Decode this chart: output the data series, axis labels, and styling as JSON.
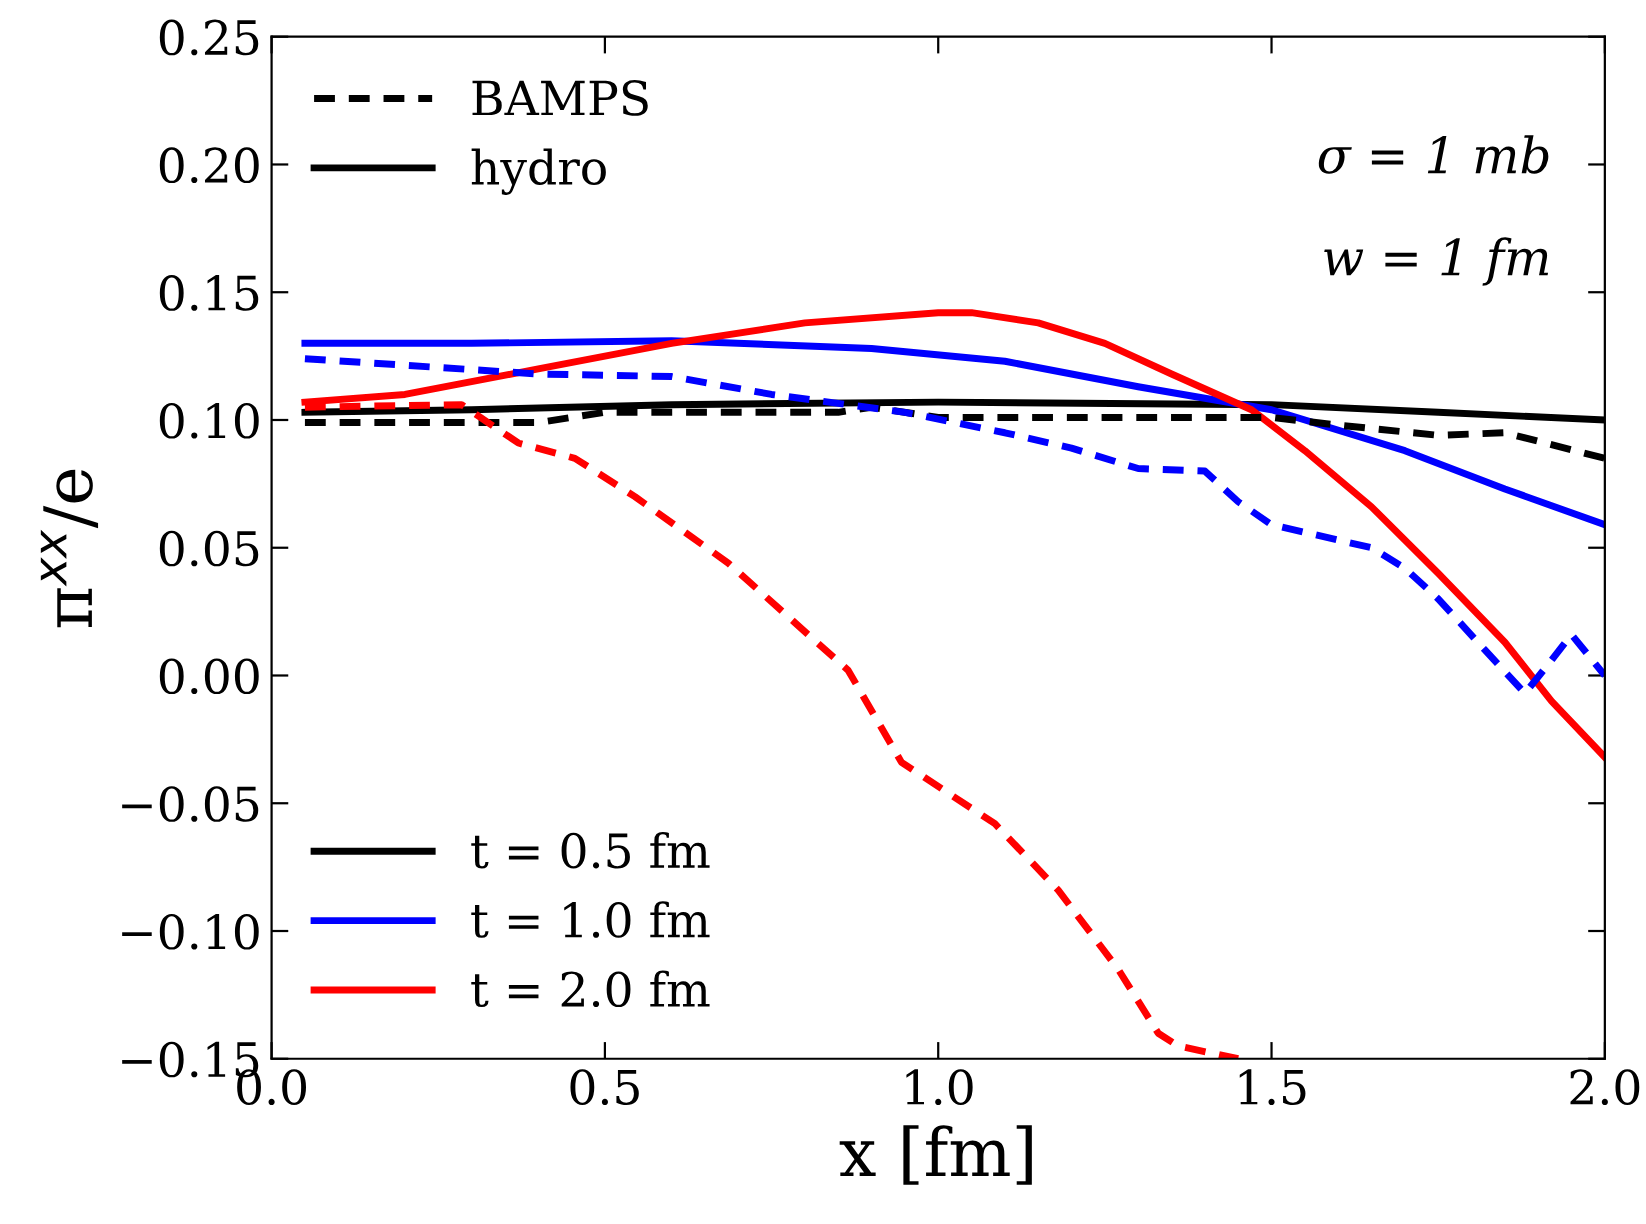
{
  "chart_data": {
    "type": "line",
    "xlabel": "x [fm]",
    "ylabel": "π$^{xx}$/e",
    "xlim": [
      0.0,
      2.0
    ],
    "xticks": [
      {
        "value": 0.0,
        "label": "0.0"
      },
      0.5,
      {
        "value": 1.0,
        "label": "1.0"
      },
      1.5,
      {
        "value": 2.0,
        "label": "2.0"
      }
    ],
    "ylim": [
      -0.15,
      0.25
    ],
    "yticks": [
      {
        "value": -0.15,
        "label": "−0.15"
      },
      {
        "value": -0.1,
        "label": "−0.10"
      },
      {
        "value": -0.05,
        "label": "−0.05"
      },
      {
        "value": 0.0,
        "label": "0.00"
      },
      0.05,
      {
        "value": 0.1,
        "label": "0.10"
      },
      0.15,
      {
        "value": 0.2,
        "label": "0.20"
      },
      0.25
    ],
    "grid": false,
    "legend": "bottom left",
    "marker": "none",
    "series": [
      {
        "name": "t = 0.5 fm",
        "color": "#000000",
        "line_style": "solid",
        "x": [
          0.05,
          0.3,
          0.6,
          1.0,
          1.5,
          1.75,
          2.0
        ],
        "values": [
          0.103,
          0.104,
          0.106,
          0.107,
          0.106,
          0.103,
          0.1
        ]
      },
      {
        "name": "t = 1.0 fm",
        "color": "#0000ff",
        "line_style": "solid",
        "x": [
          0.05,
          0.3,
          0.6,
          0.9,
          1.1,
          1.3,
          1.5,
          1.7,
          1.85,
          2.0
        ],
        "values": [
          0.13,
          0.13,
          0.131,
          0.128,
          0.123,
          0.113,
          0.104,
          0.088,
          0.073,
          0.059
        ]
      },
      {
        "name": "t = 2.0 fm",
        "color": "#ff0000",
        "line_style": "solid",
        "x": [
          0.05,
          0.2,
          0.4,
          0.6,
          0.8,
          1.0,
          1.05,
          1.15,
          1.25,
          1.35,
          1.47,
          1.55,
          1.65,
          1.75,
          1.85,
          1.92,
          2.0
        ],
        "values": [
          0.107,
          0.11,
          0.12,
          0.13,
          0.138,
          0.142,
          0.142,
          0.138,
          0.13,
          0.118,
          0.104,
          0.088,
          0.066,
          0.04,
          0.013,
          -0.01,
          -0.032
        ]
      },
      {
        "color": "#000000",
        "line_style": "dashed",
        "x": [
          0.05,
          0.4,
          0.5,
          0.85,
          0.9,
          1.0,
          1.5,
          1.6,
          1.75,
          1.85,
          2.0
        ],
        "values": [
          0.099,
          0.099,
          0.103,
          0.103,
          0.105,
          0.101,
          0.101,
          0.098,
          0.094,
          0.095,
          0.085
        ]
      },
      {
        "color": "#0000ff",
        "line_style": "dashed",
        "x": [
          0.05,
          0.4,
          0.6,
          0.75,
          0.95,
          1.1,
          1.2,
          1.3,
          1.4,
          1.45,
          1.5,
          1.65,
          1.7,
          1.75,
          1.82,
          1.88,
          1.92,
          1.95,
          2.0
        ],
        "values": [
          0.124,
          0.118,
          0.117,
          0.11,
          0.103,
          0.095,
          0.089,
          0.081,
          0.08,
          0.068,
          0.059,
          0.05,
          0.042,
          0.03,
          0.01,
          -0.007,
          0.006,
          0.016,
          0.0
        ]
      },
      {
        "color": "#ff0000",
        "line_style": "dashed",
        "x": [
          0.05,
          0.285,
          0.37,
          0.455,
          0.545,
          0.685,
          0.865,
          0.945,
          1.085,
          1.18,
          1.27,
          1.33,
          1.36,
          1.45
        ],
        "values": [
          0.105,
          0.106,
          0.091,
          0.085,
          0.07,
          0.044,
          0.002,
          -0.034,
          -0.058,
          -0.084,
          -0.115,
          -0.14,
          -0.145,
          -0.15
        ]
      }
    ],
    "annotations": [
      "BAMPS",
      "hydro",
      "σ = 1 mb",
      "w = 1 fm"
    ]
  }
}
